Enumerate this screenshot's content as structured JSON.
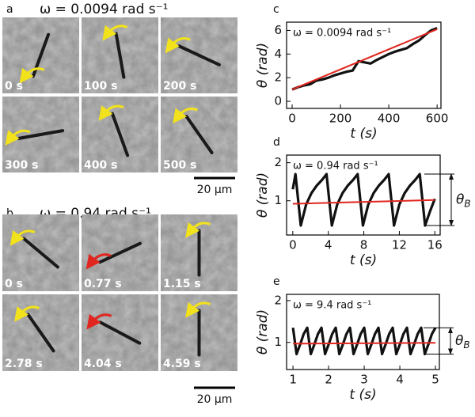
{
  "figure": {
    "panel_a": {
      "label": "a",
      "title": "ω = 0.0094 rad s⁻¹",
      "times": [
        "0 s",
        "100 s",
        "200 s",
        "300 s",
        "400 s",
        "500 s"
      ],
      "scale_bar": "20 µm"
    },
    "panel_b": {
      "label": "b",
      "title": "ω = 0.94 rad s⁻¹",
      "times": [
        "0 s",
        "0.77 s",
        "1.15 s",
        "2.78 s",
        "4.04 s",
        "4.59 s"
      ],
      "scale_bar": "20 µm"
    }
  },
  "chart_data": [
    {
      "type": "line",
      "panel_label": "c",
      "annotation": "ω = 0.0094 rad s⁻¹",
      "xlabel": "t (s)",
      "ylabel": "θ (rad)",
      "xlim": [
        -23,
        616
      ],
      "ylim": [
        -0.6,
        6.7
      ],
      "xticks": [
        0,
        200,
        400,
        600
      ],
      "yticks": [
        0,
        2,
        4,
        6
      ],
      "series": [
        {
          "color": "#111111",
          "x": [
            0,
            25,
            50,
            75,
            100,
            125,
            150,
            175,
            200,
            225,
            250,
            275,
            300,
            325,
            350,
            375,
            400,
            425,
            450,
            475,
            500,
            525,
            550,
            575,
            600
          ],
          "values": [
            1.0,
            1.2,
            1.35,
            1.45,
            1.75,
            1.85,
            2.0,
            2.2,
            2.35,
            2.5,
            2.6,
            3.4,
            3.3,
            3.2,
            3.5,
            3.75,
            4.0,
            4.2,
            4.35,
            4.5,
            4.85,
            5.15,
            5.6,
            6.0,
            6.2
          ]
        },
        {
          "color": "#e0261f",
          "x": [
            0,
            600
          ],
          "values": [
            1.0,
            6.1
          ]
        }
      ]
    },
    {
      "type": "line",
      "panel_label": "d",
      "annotation": "ω = 0.94 rad s⁻¹",
      "xlabel": "t (s)",
      "ylabel": "θ (rad)",
      "bracket_label": {
        "symbol": "θ",
        "subscript": "B"
      },
      "xlim": [
        -0.7,
        16.6
      ],
      "ylim": [
        0.1,
        2.2
      ],
      "xticks": [
        0,
        4,
        8,
        12,
        16
      ],
      "yticks": [
        1,
        2
      ],
      "series": [
        {
          "color": "#111111",
          "x": [
            0,
            0.3,
            0.9,
            1.5,
            2.1,
            2.7,
            3.3,
            3.8,
            4.4,
            5.0,
            5.6,
            6.2,
            6.8,
            7.3,
            7.9,
            8.5,
            9.1,
            9.7,
            10.3,
            10.8,
            11.4,
            12.0,
            12.6,
            13.2,
            13.8,
            14.3,
            14.9,
            15.5,
            16.0
          ],
          "values": [
            1.3,
            1.7,
            0.35,
            0.9,
            1.2,
            1.4,
            1.55,
            1.7,
            0.35,
            0.9,
            1.2,
            1.4,
            1.55,
            1.7,
            0.35,
            0.9,
            1.2,
            1.4,
            1.55,
            1.7,
            0.35,
            0.9,
            1.2,
            1.4,
            1.55,
            1.7,
            0.35,
            0.75,
            1.05
          ]
        },
        {
          "color": "#e0261f",
          "x": [
            0,
            16
          ],
          "values": [
            0.92,
            1.02
          ]
        }
      ]
    },
    {
      "type": "line",
      "panel_label": "e",
      "annotation": "ω = 9.4 rad s⁻¹",
      "xlabel": "t (s)",
      "ylabel": "θ (rad)",
      "bracket_label": {
        "symbol": "θ",
        "subscript": "B"
      },
      "xlim": [
        0.82,
        5.11
      ],
      "ylim": [
        0.35,
        2.15
      ],
      "xticks": [
        1,
        2,
        3,
        4,
        5
      ],
      "yticks": [
        1,
        2
      ],
      "series": [
        {
          "color": "#111111",
          "x": [
            1.0,
            1.1,
            1.2,
            1.3,
            1.4,
            1.5,
            1.6,
            1.7,
            1.8,
            1.9,
            2.0,
            2.1,
            2.2,
            2.3,
            2.4,
            2.5,
            2.6,
            2.7,
            2.8,
            2.9,
            3.0,
            3.1,
            3.2,
            3.3,
            3.4,
            3.5,
            3.6,
            3.7,
            3.8,
            3.9,
            4.0,
            4.1,
            4.2,
            4.3,
            4.4,
            4.5,
            4.6,
            4.7,
            4.8,
            4.9,
            5.0
          ],
          "values": [
            1.35,
            0.72,
            0.95,
            1.2,
            1.35,
            0.72,
            0.95,
            1.2,
            1.35,
            0.72,
            0.95,
            1.2,
            1.35,
            0.72,
            0.95,
            1.2,
            1.35,
            0.72,
            0.95,
            1.2,
            1.35,
            0.72,
            0.95,
            1.2,
            1.35,
            0.72,
            0.95,
            1.2,
            1.35,
            0.72,
            0.95,
            1.2,
            1.35,
            0.72,
            0.95,
            1.2,
            1.35,
            0.72,
            0.95,
            1.2,
            1.35
          ]
        },
        {
          "color": "#e0261f",
          "x": [
            1,
            5
          ],
          "values": [
            0.97,
            0.99
          ]
        }
      ]
    }
  ]
}
